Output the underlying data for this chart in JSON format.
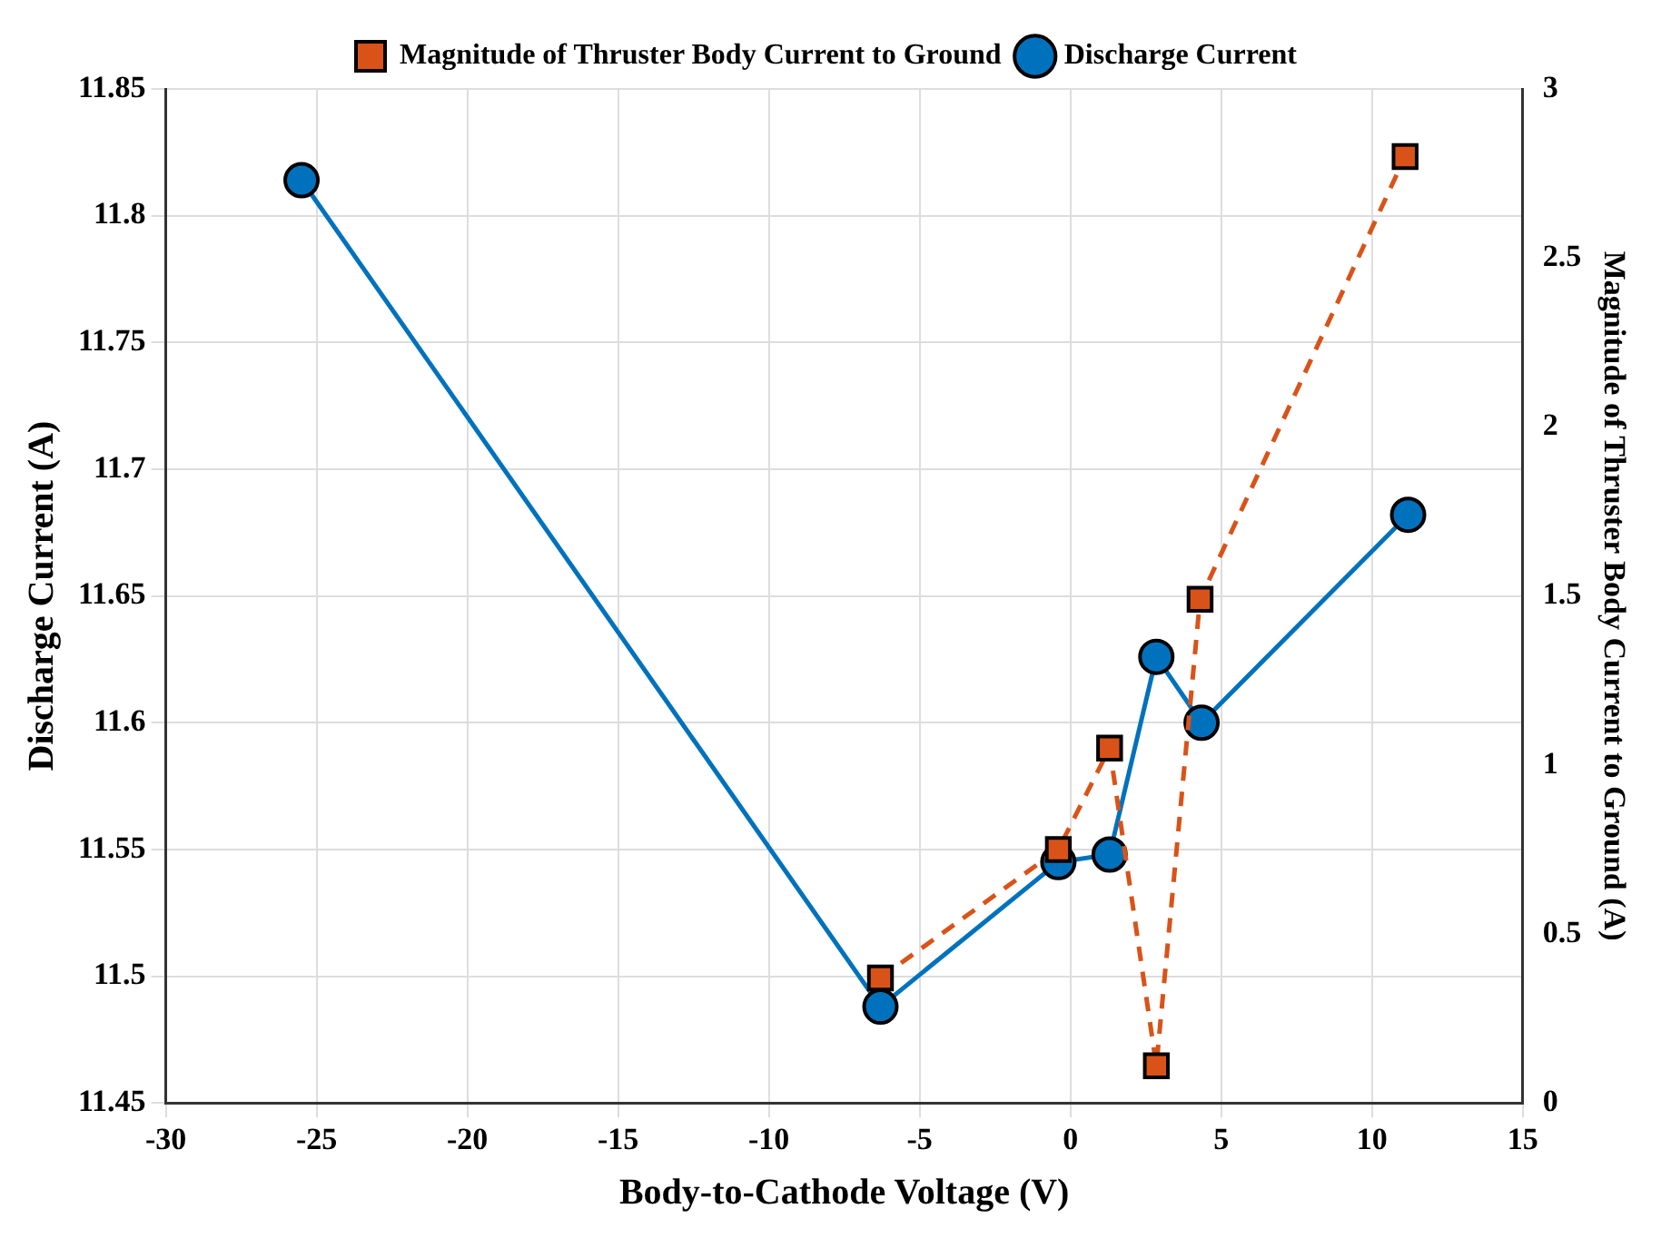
{
  "chart_data": {
    "type": "line",
    "xlabel": "Body-to-Cathode Voltage (V)",
    "ylabel": "Discharge Current (A)",
    "y2label": "Magnitude of Thruster Body Current to Ground (A)",
    "xlim": [
      -30,
      15
    ],
    "xticks": [
      -30,
      -25,
      -20,
      -15,
      -10,
      -5,
      0,
      5,
      10,
      15
    ],
    "ylim": [
      11.45,
      11.85
    ],
    "yticks": [
      11.45,
      11.5,
      11.55,
      11.6,
      11.65,
      11.7,
      11.75,
      11.8,
      11.85
    ],
    "y2lim": [
      0,
      3
    ],
    "y2ticks": [
      0,
      0.5,
      1,
      1.5,
      2,
      2.5,
      3
    ],
    "grid": true,
    "legend": "top",
    "series": [
      {
        "name": "Discharge Current",
        "color": "#0072bd",
        "marker": "circle",
        "line_style": "solid",
        "x": [
          -25.5,
          -6.3,
          -0.4,
          1.3,
          2.85,
          4.35,
          11.2
        ],
        "values": [
          11.814,
          11.488,
          11.545,
          11.548,
          11.626,
          11.6,
          11.682
        ]
      },
      {
        "name": "Magnitude of Thruster Body Current to Ground",
        "color": "#d95319",
        "marker": "square",
        "line_style": "dashed",
        "axis": "y2",
        "x": [
          -6.3,
          -0.4,
          1.3,
          2.85,
          4.3,
          11.1
        ],
        "values": [
          0.37,
          0.75,
          1.05,
          0.11,
          1.49,
          2.8
        ]
      }
    ]
  }
}
